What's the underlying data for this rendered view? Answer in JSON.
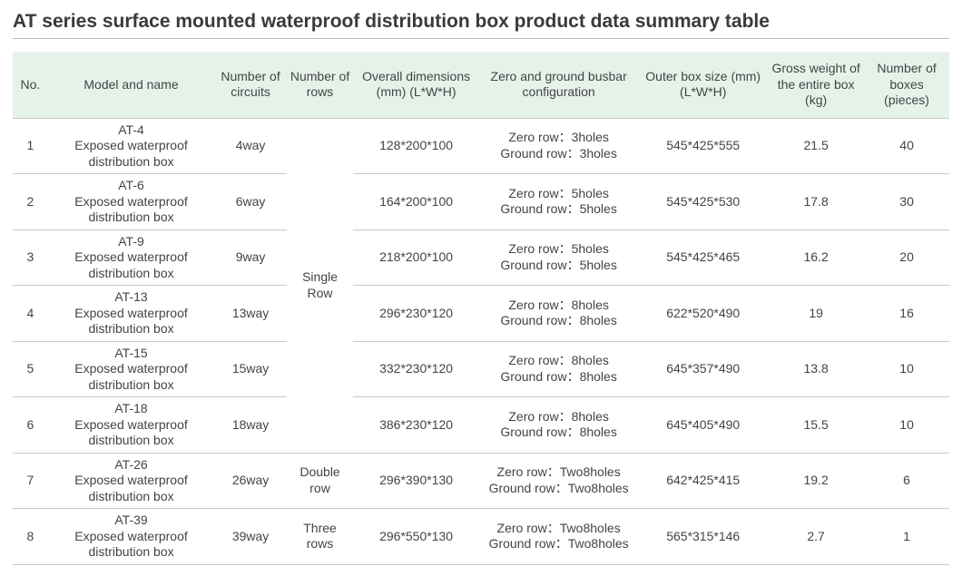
{
  "title": "AT series surface mounted waterproof distribution box product data summary table",
  "columns": [
    "No.",
    "Model and name",
    "Number of circuits",
    "Number of rows",
    "Overall dimensions (mm) (L*W*H)",
    "Zero and ground busbar configuration",
    "Outer box size (mm) (L*W*H)",
    "Gross weight of the entire box (kg)",
    "Number of boxes (pieces)"
  ],
  "row_groups": [
    {
      "label": "Single Row",
      "start": 0,
      "end": 5
    },
    {
      "label": "Double row",
      "start": 6,
      "end": 6
    },
    {
      "label": "Three rows",
      "start": 7,
      "end": 7
    }
  ],
  "rows": [
    {
      "no": "1",
      "model_code": "AT-4",
      "model_desc": "Exposed waterproof distribution box",
      "circuits": "4way",
      "overall_dim": "128*200*100",
      "busbar_zero": "Zero row：3holes",
      "busbar_ground": "Ground row：3holes",
      "outer_size": "545*425*555",
      "gross_weight": "21.5",
      "num_boxes": "40"
    },
    {
      "no": "2",
      "model_code": "AT-6",
      "model_desc": "Exposed waterproof distribution box",
      "circuits": "6way",
      "overall_dim": "164*200*100",
      "busbar_zero": "Zero row：5holes",
      "busbar_ground": "Ground row：5holes",
      "outer_size": "545*425*530",
      "gross_weight": "17.8",
      "num_boxes": "30"
    },
    {
      "no": "3",
      "model_code": "AT-9",
      "model_desc": "Exposed waterproof distribution box",
      "circuits": "9way",
      "overall_dim": "218*200*100",
      "busbar_zero": "Zero row：5holes",
      "busbar_ground": "Ground row：5holes",
      "outer_size": "545*425*465",
      "gross_weight": "16.2",
      "num_boxes": "20"
    },
    {
      "no": "4",
      "model_code": "AT-13",
      "model_desc": "Exposed waterproof distribution box",
      "circuits": "13way",
      "overall_dim": "296*230*120",
      "busbar_zero": "Zero row：8holes",
      "busbar_ground": "Ground row：8holes",
      "outer_size": "622*520*490",
      "gross_weight": "19",
      "num_boxes": "16"
    },
    {
      "no": "5",
      "model_code": "AT-15",
      "model_desc": "Exposed waterproof distribution box",
      "circuits": "15way",
      "overall_dim": "332*230*120",
      "busbar_zero": "Zero row：8holes",
      "busbar_ground": "Ground row：8holes",
      "outer_size": "645*357*490",
      "gross_weight": "13.8",
      "num_boxes": "10"
    },
    {
      "no": "6",
      "model_code": "AT-18",
      "model_desc": "Exposed waterproof distribution box",
      "circuits": "18way",
      "overall_dim": "386*230*120",
      "busbar_zero": "Zero row：8holes",
      "busbar_ground": "Ground row：8holes",
      "outer_size": "645*405*490",
      "gross_weight": "15.5",
      "num_boxes": "10"
    },
    {
      "no": "7",
      "model_code": "AT-26",
      "model_desc": "Exposed waterproof distribution box",
      "circuits": "26way",
      "overall_dim": "296*390*130",
      "busbar_zero": "Zero row：Two8holes",
      "busbar_ground": "Ground row：Two8holes",
      "outer_size": "642*425*415",
      "gross_weight": "19.2",
      "num_boxes": "6"
    },
    {
      "no": "8",
      "model_code": "AT-39",
      "model_desc": "Exposed waterproof distribution box",
      "circuits": "39way",
      "overall_dim": "296*550*130",
      "busbar_zero": "Zero row：Two8holes",
      "busbar_ground": "Ground row：Two8holes",
      "outer_size": "565*315*146",
      "gross_weight": "2.7",
      "num_boxes": "1"
    }
  ],
  "style": {
    "header_bg": "#e5f2ea",
    "border_color": "#c9c9c9",
    "title_border": "#b9b9b9",
    "text_color": "#444444",
    "background": "#ffffff",
    "font_size_body": 14,
    "font_size_title": 21
  }
}
